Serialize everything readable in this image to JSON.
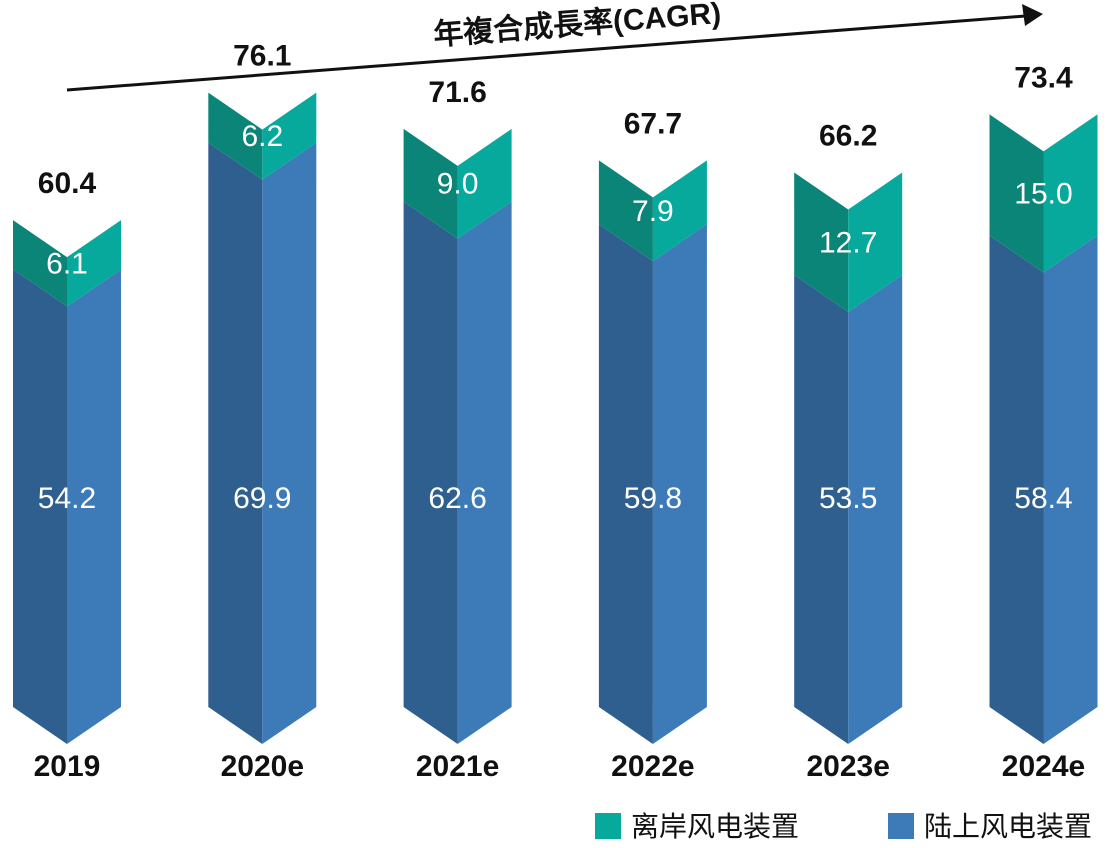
{
  "chart_data": {
    "type": "bar",
    "stacked": true,
    "annotation": "年複合成長率(CAGR)",
    "categories": [
      "2019",
      "2020e",
      "2021e",
      "2022e",
      "2023e",
      "2024e"
    ],
    "series": [
      {
        "name": "陆上风电装置",
        "values": [
          54.2,
          69.9,
          62.6,
          59.8,
          53.5,
          58.4
        ]
      },
      {
        "name": "离岸风电装置",
        "values": [
          6.1,
          6.2,
          9.0,
          7.9,
          12.7,
          15.0
        ]
      }
    ],
    "totals": [
      "60.4",
      "76.1",
      "71.6",
      "67.7",
      "66.2",
      "73.4"
    ],
    "segment_labels": [
      [
        "54.2",
        "69.9",
        "62.6",
        "59.8",
        "53.5",
        "58.4"
      ],
      [
        "6.1",
        "6.2",
        "9.0",
        "7.9",
        "12.7",
        "15.0"
      ]
    ],
    "legend": [
      "离岸风电装置",
      "陆上风电装置"
    ],
    "legend_position": "bottom-right",
    "grid": false,
    "colors": {
      "onshore_dark": "#2f5f8f",
      "onshore_light": "#3c7ab8",
      "offshore_dark": "#0c8579",
      "offshore_light": "#07a99c"
    }
  }
}
